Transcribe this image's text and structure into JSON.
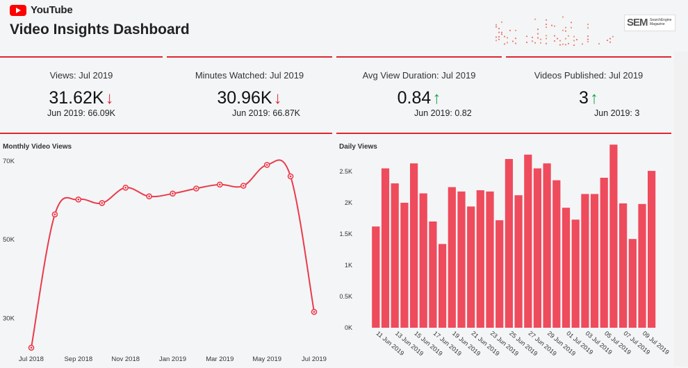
{
  "header": {
    "brand": "YouTube",
    "title": "Video Insights Dashboard",
    "sem_logo": {
      "mark": "SEM",
      "line1": "SearchEngine",
      "line2": "Magazine"
    }
  },
  "kpis": [
    {
      "label": "Views: Jul 2019",
      "value": "31.62K",
      "trend": "down",
      "arrow": "↓",
      "previous": "Jun 2019: 66.09K"
    },
    {
      "label": "Minutes Watched: Jul 2019",
      "value": "30.96K",
      "trend": "down",
      "arrow": "↓",
      "previous": "Jun 2019: 66.87K"
    },
    {
      "label": "Avg View Duration: Jul 2019",
      "value": "0.84",
      "trend": "up",
      "arrow": "↑",
      "previous": "Jun 2019: 0.82"
    },
    {
      "label": "Videos Published: Jul 2019",
      "value": "3",
      "trend": "up",
      "arrow": "↑",
      "previous": "Jun 2019: 3"
    }
  ],
  "colors": {
    "accent": "#e0252f",
    "bar": "#ee4b5c",
    "down": "#e0252f",
    "up": "#1aa34a"
  },
  "chart_data": [
    {
      "type": "line",
      "title": "Monthly Video Views",
      "x": [
        "Jul 2018",
        "Aug 2018",
        "Sep 2018",
        "Oct 2018",
        "Nov 2018",
        "Dec 2018",
        "Jan 2019",
        "Feb 2019",
        "Mar 2019",
        "Apr 2019",
        "May 2019",
        "Jun 2019",
        "Jul 2019"
      ],
      "x_tick_labels": [
        "Jul 2018",
        "Sep 2018",
        "Nov 2018",
        "Jan 2019",
        "Mar 2019",
        "May 2019",
        "Jul 2019"
      ],
      "values": [
        22500,
        56400,
        60200,
        59300,
        63200,
        61000,
        61700,
        63000,
        64000,
        63700,
        69000,
        66090,
        31620
      ],
      "y_ticks": [
        30000,
        50000,
        70000
      ],
      "y_tick_labels": [
        "30K",
        "50K",
        "70K"
      ],
      "ylim": [
        20700,
        73500
      ],
      "grid": false
    },
    {
      "type": "bar",
      "title": "Daily Views",
      "categories": [
        "11 Jun 2019",
        "12 Jun 2019",
        "13 Jun 2019",
        "14 Jun 2019",
        "15 Jun 2019",
        "16 Jun 2019",
        "17 Jun 2019",
        "18 Jun 2019",
        "19 Jun 2019",
        "20 Jun 2019",
        "21 Jun 2019",
        "22 Jun 2019",
        "23 Jun 2019",
        "24 Jun 2019",
        "25 Jun 2019",
        "26 Jun 2019",
        "27 Jun 2019",
        "28 Jun 2019",
        "29 Jun 2019",
        "30 Jun 2019",
        "01 Jul 2019",
        "02 Jul 2019",
        "03 Jul 2019",
        "04 Jul 2019",
        "05 Jul 2019",
        "06 Jul 2019",
        "07 Jul 2019",
        "08 Jul 2019",
        "09 Jul 2019",
        "10 Jul 2019"
      ],
      "x_tick_labels": [
        "11 Jun 2019",
        "13 Jun 2019",
        "15 Jun 2019",
        "17 Jun 2019",
        "19 Jun 2019",
        "21 Jun 2019",
        "23 Jun 2019",
        "25 Jun 2019",
        "27 Jun 2019",
        "29 Jun 2019",
        "01 Jul 2019",
        "03 Jul 2019",
        "05 Jul 2019",
        "07 Jul 2019",
        "09 Jul 2019"
      ],
      "values": [
        1620,
        2550,
        2310,
        2000,
        2630,
        2150,
        1700,
        1340,
        2250,
        2180,
        1940,
        2200,
        2180,
        1720,
        2700,
        2120,
        2770,
        2550,
        2630,
        2360,
        1920,
        1730,
        2140,
        2140,
        2400,
        2930,
        1990,
        1420,
        1980,
        2510
      ],
      "y_ticks": [
        0,
        500,
        1000,
        1500,
        2000,
        2500
      ],
      "y_tick_labels": [
        "0K",
        "0.5K",
        "1K",
        "1.5K",
        "2K",
        "2.5K"
      ],
      "ylim": [
        0,
        3000
      ],
      "grid": false
    }
  ]
}
